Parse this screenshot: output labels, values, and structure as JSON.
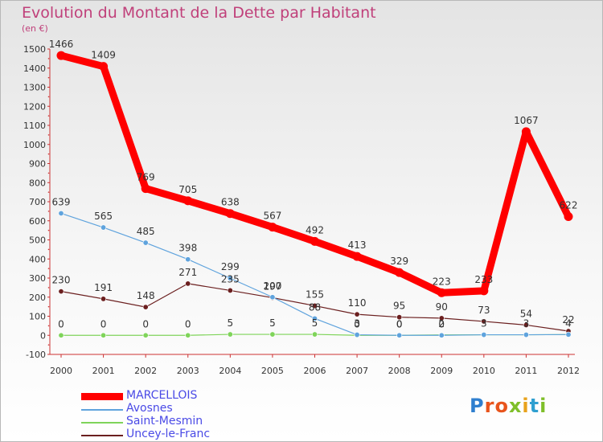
{
  "title": "Evolution du Montant de la Dette par Habitant",
  "unit": "(en €)",
  "logo": "Proxiti",
  "colors": {
    "title": "#c0407a",
    "legend_text": "#4a4ae6"
  },
  "chart_data": {
    "type": "line",
    "title": "Evolution du Montant de la Dette par Habitant",
    "ylabel": "(en €)",
    "x": [
      "2000",
      "2001",
      "2002",
      "2003",
      "2004",
      "2005",
      "2006",
      "2007",
      "2008",
      "2009",
      "2010",
      "2011",
      "2012"
    ],
    "ylim": [
      -100,
      1500
    ],
    "yticks": [
      -100,
      0,
      100,
      200,
      300,
      400,
      500,
      600,
      700,
      800,
      900,
      1000,
      1100,
      1200,
      1300,
      1400,
      1500
    ],
    "grid": false,
    "legend_position": "bottom-left",
    "series": [
      {
        "name": "MARCELLOIS",
        "color": "#ff0000",
        "width": "thick",
        "values": [
          1466,
          1409,
          769,
          705,
          638,
          567,
          492,
          413,
          329,
          223,
          233,
          1067,
          622
        ],
        "labels": [
          "1466",
          "1409",
          "769",
          "705",
          "638",
          "567",
          "492",
          "413",
          "329",
          "223",
          "233",
          "1067",
          "622"
        ]
      },
      {
        "name": "Avosnes",
        "color": "#5fa3dd",
        "width": "thin",
        "values": [
          639,
          565,
          485,
          398,
          299,
          200,
          88,
          3,
          0,
          0,
          3,
          3,
          4
        ],
        "labels": [
          "639",
          "565",
          "485",
          "398",
          "299",
          "200",
          "88",
          "3",
          "0",
          "0",
          "3",
          "3",
          "4"
        ]
      },
      {
        "name": "Saint-Mesmin",
        "color": "#7fd45a",
        "width": "thin",
        "values": [
          0,
          0,
          0,
          0,
          5,
          5,
          5,
          0,
          0,
          2,
          3,
          3,
          4
        ],
        "labels": [
          "0",
          "0",
          "0",
          "0",
          "5",
          "5",
          "5",
          "0",
          "0",
          "2",
          "",
          "",
          ""
        ]
      },
      {
        "name": "Uncey-le-Franc",
        "color": "#6b1f1f",
        "width": "thin",
        "values": [
          230,
          191,
          148,
          271,
          235,
          197,
          155,
          110,
          95,
          90,
          73,
          54,
          22
        ],
        "labels": [
          "230",
          "191",
          "148",
          "271",
          "235",
          "197",
          "155",
          "110",
          "95",
          "90",
          "73",
          "54",
          "22"
        ]
      }
    ]
  }
}
